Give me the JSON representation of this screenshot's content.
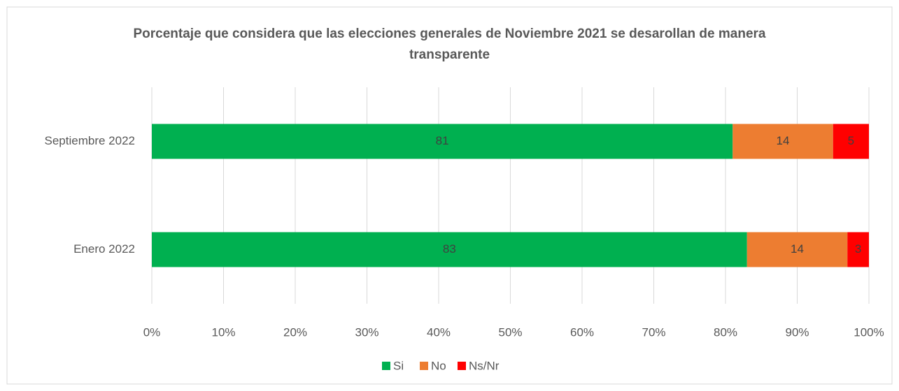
{
  "chart_data": {
    "type": "bar",
    "orientation": "horizontal",
    "stacked": true,
    "title": "Porcentaje que considera que las elecciones generales de Noviembre 2021 se desarollan de manera transparente",
    "categories": [
      "Septiembre 2022",
      "Enero 2022"
    ],
    "series": [
      {
        "name": "Si",
        "color": "#00b050",
        "values": [
          81,
          83
        ]
      },
      {
        "name": "No",
        "color": "#ed7d31",
        "values": [
          14,
          14
        ]
      },
      {
        "name": "Ns/Nr",
        "color": "#ff0000",
        "values": [
          5,
          3
        ]
      }
    ],
    "xlim": [
      0,
      100
    ],
    "xticks": [
      {
        "value": 0,
        "label": "0%"
      },
      {
        "value": 10,
        "label": "10%"
      },
      {
        "value": 20,
        "label": "20%"
      },
      {
        "value": 30,
        "label": "30%"
      },
      {
        "value": 40,
        "label": "40%"
      },
      {
        "value": 50,
        "label": "50%"
      },
      {
        "value": 60,
        "label": "60%"
      },
      {
        "value": 70,
        "label": "70%"
      },
      {
        "value": 80,
        "label": "80%"
      },
      {
        "value": 90,
        "label": "90%"
      },
      {
        "value": 100,
        "label": "100%"
      }
    ],
    "grid": true,
    "legend": "bottom"
  }
}
